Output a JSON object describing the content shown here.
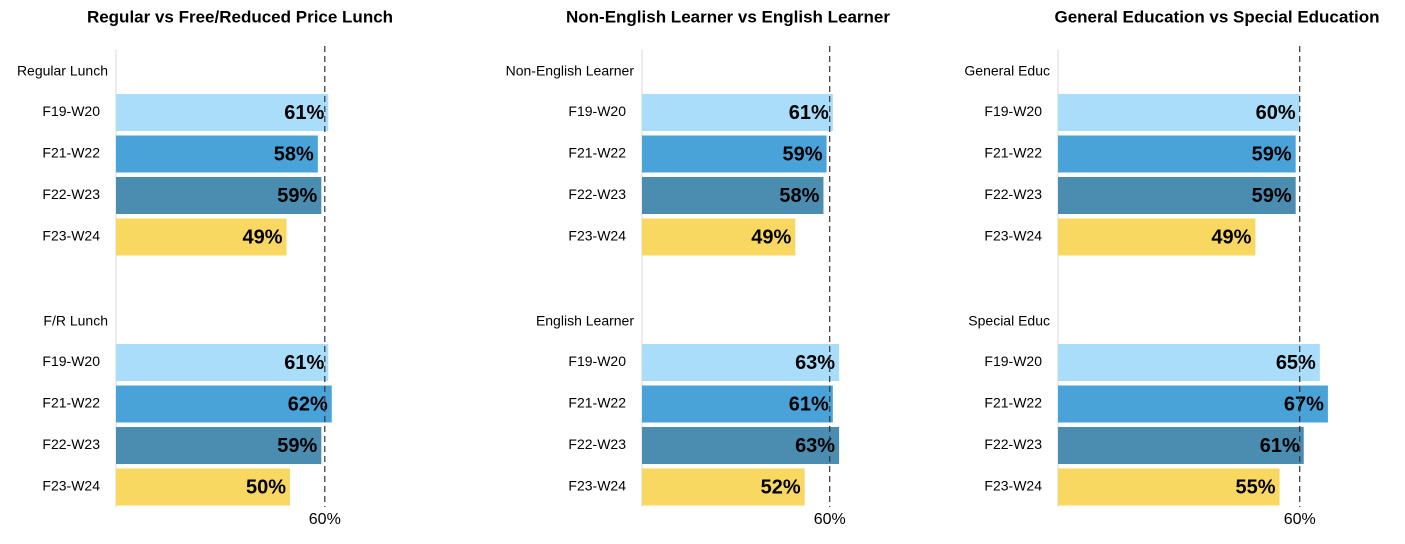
{
  "chart_data": [
    {
      "type": "bar",
      "title": "Regular vs Free/Reduced Price Lunch",
      "categories": [
        "F19-W20",
        "F21-W22",
        "F22-W23",
        "F23-W24"
      ],
      "colors": [
        "#a9ddf9",
        "#4aa3d8",
        "#4a8db0",
        "#f9d862"
      ],
      "groups": [
        {
          "name": "Regular Lunch",
          "values": [
            61,
            58,
            59,
            49
          ],
          "value_labels": [
            "61%",
            "58%",
            "59%",
            "49%"
          ]
        },
        {
          "name": "F/R Lunch",
          "values": [
            61,
            62,
            59,
            50
          ],
          "value_labels": [
            "61%",
            "62%",
            "59%",
            "50%"
          ]
        }
      ],
      "xlim": [
        0,
        70
      ],
      "reference_line": {
        "value": 60,
        "label": "60%"
      }
    },
    {
      "type": "bar",
      "title": "Non-English Learner vs English Learner",
      "categories": [
        "F19-W20",
        "F21-W22",
        "F22-W23",
        "F23-W24"
      ],
      "colors": [
        "#a9ddf9",
        "#4aa3d8",
        "#4a8db0",
        "#f9d862"
      ],
      "groups": [
        {
          "name": "Non-English Learner",
          "values": [
            61,
            59,
            58,
            49
          ],
          "value_labels": [
            "61%",
            "59%",
            "58%",
            "49%"
          ]
        },
        {
          "name": "English Learner",
          "values": [
            63,
            61,
            63,
            52
          ],
          "value_labels": [
            "63%",
            "61%",
            "63%",
            "52%"
          ]
        }
      ],
      "xlim": [
        0,
        70
      ],
      "reference_line": {
        "value": 60,
        "label": "60%"
      }
    },
    {
      "type": "bar",
      "title": "General Education vs Special Education",
      "categories": [
        "F19-W20",
        "F21-W22",
        "F22-W23",
        "F23-W24"
      ],
      "colors": [
        "#a9ddf9",
        "#4aa3d8",
        "#4a8db0",
        "#f9d862"
      ],
      "groups": [
        {
          "name": "General Educ",
          "values": [
            60,
            59,
            59,
            49
          ],
          "value_labels": [
            "60%",
            "59%",
            "59%",
            "49%"
          ]
        },
        {
          "name": "Special Educ",
          "values": [
            65,
            67,
            61,
            55
          ],
          "value_labels": [
            "65%",
            "67%",
            "61%",
            "55%"
          ]
        }
      ],
      "xlim": [
        0,
        70
      ],
      "reference_line": {
        "value": 60,
        "label": "60%"
      }
    }
  ]
}
